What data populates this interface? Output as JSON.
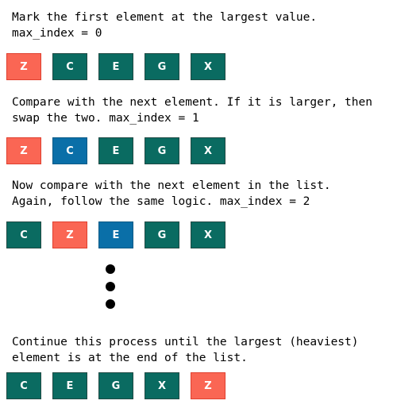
{
  "colors": {
    "default": "#0a6b61",
    "current_max": "#fa6654",
    "compared": "#0a6fa8"
  },
  "steps": [
    {
      "caption": "Mark the first element at the largest value.\nmax_index = 0",
      "boxes": [
        {
          "label": "Z",
          "state": "current_max"
        },
        {
          "label": "C",
          "state": "default"
        },
        {
          "label": "E",
          "state": "default"
        },
        {
          "label": "G",
          "state": "default"
        },
        {
          "label": "X",
          "state": "default"
        }
      ]
    },
    {
      "caption": "Compare with the next element. If it is larger, then\nswap the two. max_index = 1",
      "boxes": [
        {
          "label": "Z",
          "state": "current_max"
        },
        {
          "label": "C",
          "state": "compared"
        },
        {
          "label": "E",
          "state": "default"
        },
        {
          "label": "G",
          "state": "default"
        },
        {
          "label": "X",
          "state": "default"
        }
      ]
    },
    {
      "caption": "Now compare with the next element in the list.\nAgain, follow the same logic. max_index = 2",
      "boxes": [
        {
          "label": "C",
          "state": "default"
        },
        {
          "label": "Z",
          "state": "current_max"
        },
        {
          "label": "E",
          "state": "compared"
        },
        {
          "label": "G",
          "state": "default"
        },
        {
          "label": "X",
          "state": "default"
        }
      ]
    },
    {
      "caption": "Continue this process until the largest (heaviest)\nelement is at the end of the list.",
      "boxes": [
        {
          "label": "C",
          "state": "default"
        },
        {
          "label": "E",
          "state": "default"
        },
        {
          "label": "G",
          "state": "default"
        },
        {
          "label": "X",
          "state": "default"
        },
        {
          "label": "Z",
          "state": "current_max"
        }
      ]
    }
  ]
}
